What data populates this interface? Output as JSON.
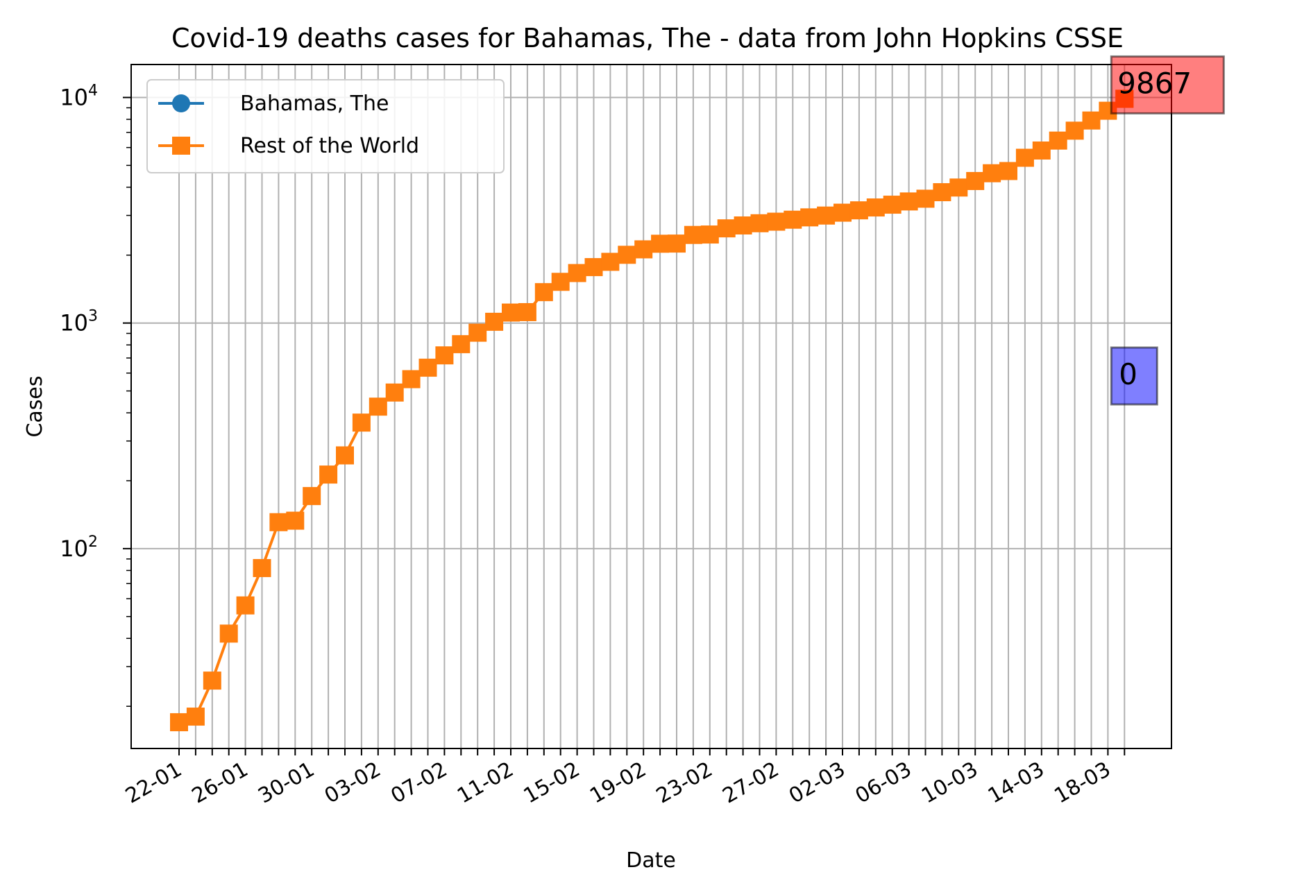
{
  "chart_data": {
    "type": "line",
    "title": "Covid-19 deaths cases for Bahamas, The - data from John Hopkins CSSE",
    "xlabel": "Date",
    "ylabel": "Cases",
    "yscale": "log",
    "ylim": [
      13,
      14000
    ],
    "grid": true,
    "legend_position": "top-left",
    "x": [
      "22-01",
      "23-01",
      "24-01",
      "25-01",
      "26-01",
      "27-01",
      "28-01",
      "29-01",
      "30-01",
      "31-01",
      "01-02",
      "02-02",
      "03-02",
      "04-02",
      "05-02",
      "06-02",
      "07-02",
      "08-02",
      "09-02",
      "10-02",
      "11-02",
      "12-02",
      "13-02",
      "14-02",
      "15-02",
      "16-02",
      "17-02",
      "18-02",
      "19-02",
      "20-02",
      "21-02",
      "22-02",
      "23-02",
      "24-02",
      "25-02",
      "26-02",
      "27-02",
      "28-02",
      "29-02",
      "01-03",
      "02-03",
      "03-03",
      "04-03",
      "05-03",
      "06-03",
      "07-03",
      "08-03",
      "09-03",
      "10-03",
      "11-03",
      "12-03",
      "13-03",
      "14-03",
      "15-03",
      "16-03",
      "17-03",
      "18-03",
      "19-03"
    ],
    "x_tick_labels": [
      "22-01",
      "26-01",
      "30-01",
      "03-02",
      "07-02",
      "11-02",
      "15-02",
      "19-02",
      "23-02",
      "27-02",
      "02-03",
      "06-03",
      "10-03",
      "14-03",
      "18-03"
    ],
    "y_tick_labels": [
      {
        "base": "10",
        "exp": "2",
        "value": 100
      },
      {
        "base": "10",
        "exp": "3",
        "value": 1000
      },
      {
        "base": "10",
        "exp": "4",
        "value": 10000
      }
    ],
    "series": [
      {
        "name": "Bahamas, The",
        "color": "#1f77b4",
        "marker": "circle",
        "values": [
          0,
          0,
          0,
          0,
          0,
          0,
          0,
          0,
          0,
          0,
          0,
          0,
          0,
          0,
          0,
          0,
          0,
          0,
          0,
          0,
          0,
          0,
          0,
          0,
          0,
          0,
          0,
          0,
          0,
          0,
          0,
          0,
          0,
          0,
          0,
          0,
          0,
          0,
          0,
          0,
          0,
          0,
          0,
          0,
          0,
          0,
          0,
          0,
          0,
          0,
          0,
          0,
          0,
          0,
          0,
          0,
          0,
          0
        ]
      },
      {
        "name": "Rest of the World",
        "color": "#ff7f0e",
        "marker": "square",
        "values": [
          17,
          18,
          26,
          42,
          56,
          82,
          131,
          133,
          171,
          213,
          259,
          362,
          426,
          492,
          564,
          634,
          719,
          806,
          906,
          1013,
          1113,
          1118,
          1371,
          1523,
          1666,
          1770,
          1868,
          2007,
          2122,
          2247,
          2251,
          2458,
          2469,
          2629,
          2708,
          2770,
          2814,
          2872,
          2941,
          2996,
          3085,
          3160,
          3254,
          3348,
          3460,
          3558,
          3803,
          3988,
          4262,
          4615,
          4720,
          5404,
          5819,
          6440,
          7126,
          7905,
          8733,
          9867
        ]
      }
    ],
    "annotations": [
      {
        "label": "9867",
        "series": "Rest of the World",
        "color": "#ff0000"
      },
      {
        "label": "0",
        "series": "Bahamas, The",
        "color": "#0000ff"
      }
    ]
  }
}
